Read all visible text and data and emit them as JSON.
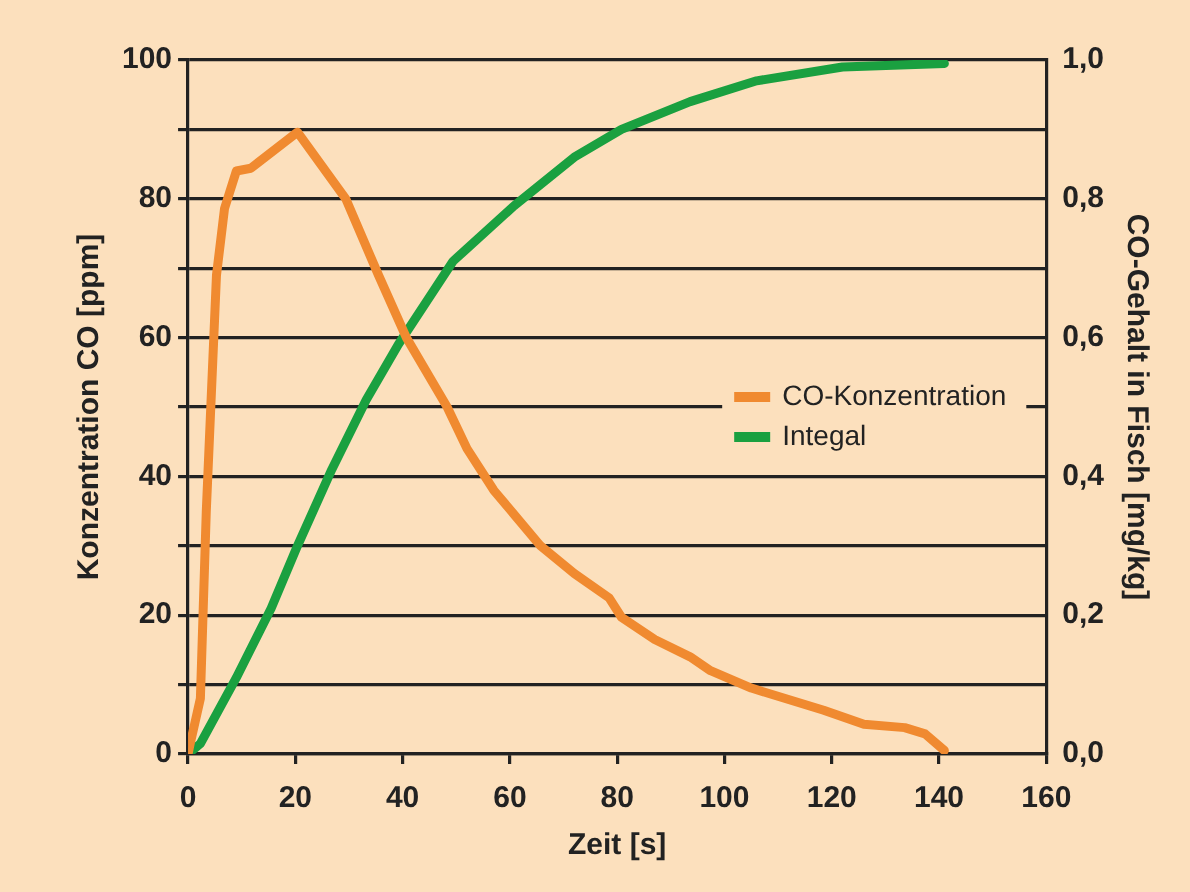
{
  "chart_data": {
    "type": "line",
    "xlabel": "Zeit [s]",
    "ylabel": "Konzentration CO [ppm]",
    "y2label": "CO-Gehalt in Fisch [mg/kg]",
    "xlim": [
      0,
      160
    ],
    "xticks": [
      0,
      20,
      40,
      60,
      80,
      100,
      120,
      140,
      160
    ],
    "ylim": [
      0,
      100
    ],
    "yticks": [
      0,
      {
        "value": 10,
        "label": null
      },
      20,
      {
        "value": 30,
        "label": null
      },
      40,
      {
        "value": 50,
        "label": null
      },
      60,
      {
        "value": 70,
        "label": null
      },
      80,
      {
        "value": 90,
        "label": null
      },
      100
    ],
    "y2lim": [
      0,
      1
    ],
    "y2ticks": [
      {
        "value": 0,
        "label": "0,0"
      },
      {
        "value": 0.2,
        "label": "0,2"
      },
      {
        "value": 0.4,
        "label": "0,4"
      },
      {
        "value": 0.6,
        "label": "0,6"
      },
      {
        "value": 0.8,
        "label": "0,8"
      },
      {
        "value": 1,
        "label": "1,0"
      }
    ],
    "grid": "y",
    "legend": "right",
    "marker": "none",
    "line_style": "solid",
    "series": [
      {
        "name": "CO-Konzentration",
        "color": "#f08a30",
        "x": [
          0,
          0.4,
          2.3,
          3.4,
          5.3,
          6.8,
          9,
          11.7,
          20.4,
          29.4,
          35.5,
          40.7,
          48.3,
          52,
          57,
          65.7,
          72,
          78.5,
          80.8,
          87,
          93.6,
          97.4,
          105,
          118.5,
          126,
          133.6,
          137.4,
          141
        ],
        "values": [
          0,
          1.5,
          8,
          35,
          69,
          78.6,
          84,
          84.4,
          89.6,
          80,
          69,
          60,
          50,
          44,
          38,
          30,
          26,
          22.5,
          19.7,
          16.5,
          14,
          12,
          9.5,
          6.3,
          4.3,
          3.8,
          2.9,
          0.5
        ]
      },
      {
        "name": "Integal",
        "color": "#1aa040",
        "axis": "y2",
        "x": [
          0,
          2.3,
          9,
          15.5,
          20.4,
          26.8,
          33.2,
          39.2,
          49.4,
          60.8,
          72,
          80.8,
          93.6,
          106,
          122,
          141
        ],
        "values": [
          0,
          0.015,
          0.11,
          0.21,
          0.3,
          0.41,
          0.51,
          0.59,
          0.71,
          0.79,
          0.86,
          0.9,
          0.94,
          0.97,
          0.99,
          0.995
        ]
      }
    ]
  }
}
